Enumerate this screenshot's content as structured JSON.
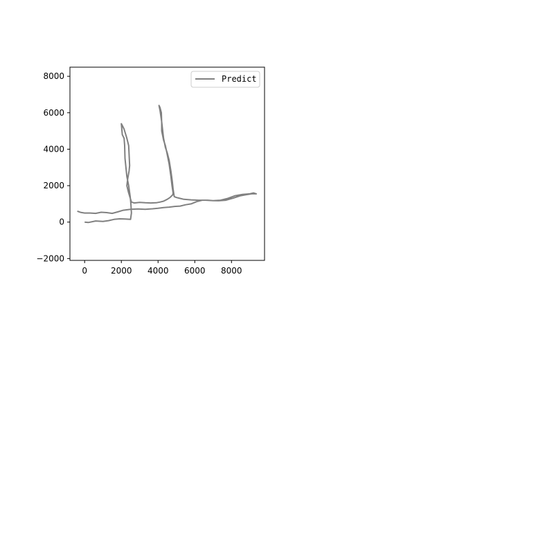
{
  "chart_data": {
    "type": "line",
    "title": "",
    "xlabel": "",
    "ylabel": "",
    "xlim": [
      -800,
      9800
    ],
    "ylim": [
      -2100,
      8500
    ],
    "grid": false,
    "legend_position": "top-right",
    "x_ticks": [
      0,
      2000,
      4000,
      6000,
      8000
    ],
    "x_tick_labels": [
      "0",
      "2000",
      "4000",
      "6000",
      "8000"
    ],
    "y_ticks": [
      -2000,
      0,
      2000,
      4000,
      6000,
      8000
    ],
    "y_tick_labels": [
      "−2000",
      "0",
      "2000",
      "4000",
      "6000",
      "8000"
    ],
    "series": [
      {
        "name": "Predict",
        "color": "#808080",
        "x": [
          0,
          200,
          600,
          1000,
          1300,
          1600,
          1900,
          2200,
          2500,
          2550,
          2520,
          2480,
          2400,
          2300,
          2200,
          2180,
          2150,
          2050,
          2000,
          2050,
          2150,
          2300,
          2400,
          2450,
          2420,
          2350,
          2300,
          2400,
          2550,
          2700,
          3000,
          3300,
          3600,
          3900,
          4100,
          4300,
          4500,
          4650,
          4800,
          4820,
          4760,
          4700,
          4600,
          4480,
          4400,
          4300,
          4200,
          4200,
          4180,
          4100,
          4050,
          4110,
          4200,
          4300,
          4400,
          4500,
          4600,
          4700,
          4780,
          4820,
          4880,
          5000,
          5200,
          5400,
          5800,
          6200,
          6600,
          7000,
          7400,
          7800,
          8200,
          8600,
          9000,
          9200,
          9350,
          9100,
          8800,
          8500,
          8100,
          7700,
          7300,
          7000,
          6700,
          6400,
          6100,
          5800,
          5500,
          5200,
          4900,
          4600,
          4300,
          4000,
          3700,
          3300,
          2900,
          2500,
          2100,
          1800,
          1500,
          1200,
          900,
          600,
          300,
          0,
          -200,
          -400
        ],
        "y": [
          0,
          -20,
          60,
          40,
          80,
          150,
          180,
          170,
          150,
          500,
          1000,
          1400,
          2000,
          2500,
          3500,
          4200,
          4600,
          4800,
          5400,
          5300,
          5100,
          4600,
          4200,
          3100,
          2800,
          2400,
          2000,
          1600,
          1100,
          1050,
          1080,
          1060,
          1050,
          1060,
          1100,
          1150,
          1250,
          1350,
          1500,
          1600,
          2000,
          2500,
          3200,
          3800,
          4200,
          4500,
          5000,
          5400,
          6000,
          6300,
          6400,
          6100,
          5500,
          4600,
          4100,
          3800,
          3400,
          2800,
          2200,
          1800,
          1400,
          1350,
          1300,
          1250,
          1220,
          1200,
          1200,
          1180,
          1200,
          1300,
          1450,
          1520,
          1550,
          1600,
          1550,
          1550,
          1500,
          1450,
          1320,
          1200,
          1170,
          1180,
          1200,
          1200,
          1120,
          1000,
          950,
          880,
          860,
          820,
          800,
          760,
          730,
          700,
          720,
          700,
          650,
          560,
          480,
          520,
          540,
          480,
          500,
          500,
          530,
          600
        ]
      }
    ]
  }
}
